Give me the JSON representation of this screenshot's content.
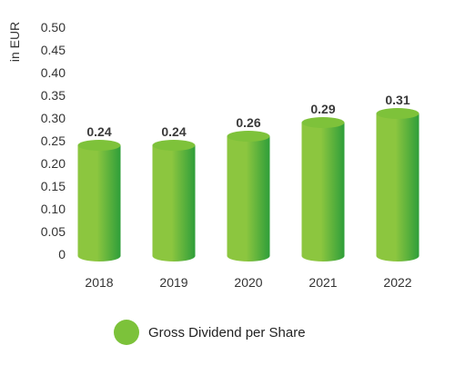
{
  "chart_data": {
    "type": "bar",
    "categories": [
      "2018",
      "2019",
      "2020",
      "2021",
      "2022"
    ],
    "series": [
      {
        "name": "Gross Dividend per Share",
        "values": [
          0.24,
          0.24,
          0.26,
          0.29,
          0.31
        ],
        "data_labels": [
          "0.24",
          "0.24",
          "0.26",
          "0.29",
          "0.31"
        ]
      }
    ],
    "ylabel": "in EUR",
    "ylim": [
      0,
      0.5
    ],
    "y_ticks": [
      "0",
      "0.05",
      "0.10",
      "0.15",
      "0.20",
      "0.25",
      "0.30",
      "0.35",
      "0.40",
      "0.45",
      "0.50"
    ],
    "y_tick_values": [
      0,
      0.05,
      0.1,
      0.15,
      0.2,
      0.25,
      0.3,
      0.35,
      0.4,
      0.45,
      0.5
    ],
    "grid": false,
    "bar_style": "cylinder",
    "legend_position": "bottom",
    "colors": {
      "bar_light": "#8cc63f",
      "bar_dark": "#2e9e3a",
      "bar_top": "#7ec23a",
      "legend_marker": "#7cc23a"
    }
  }
}
